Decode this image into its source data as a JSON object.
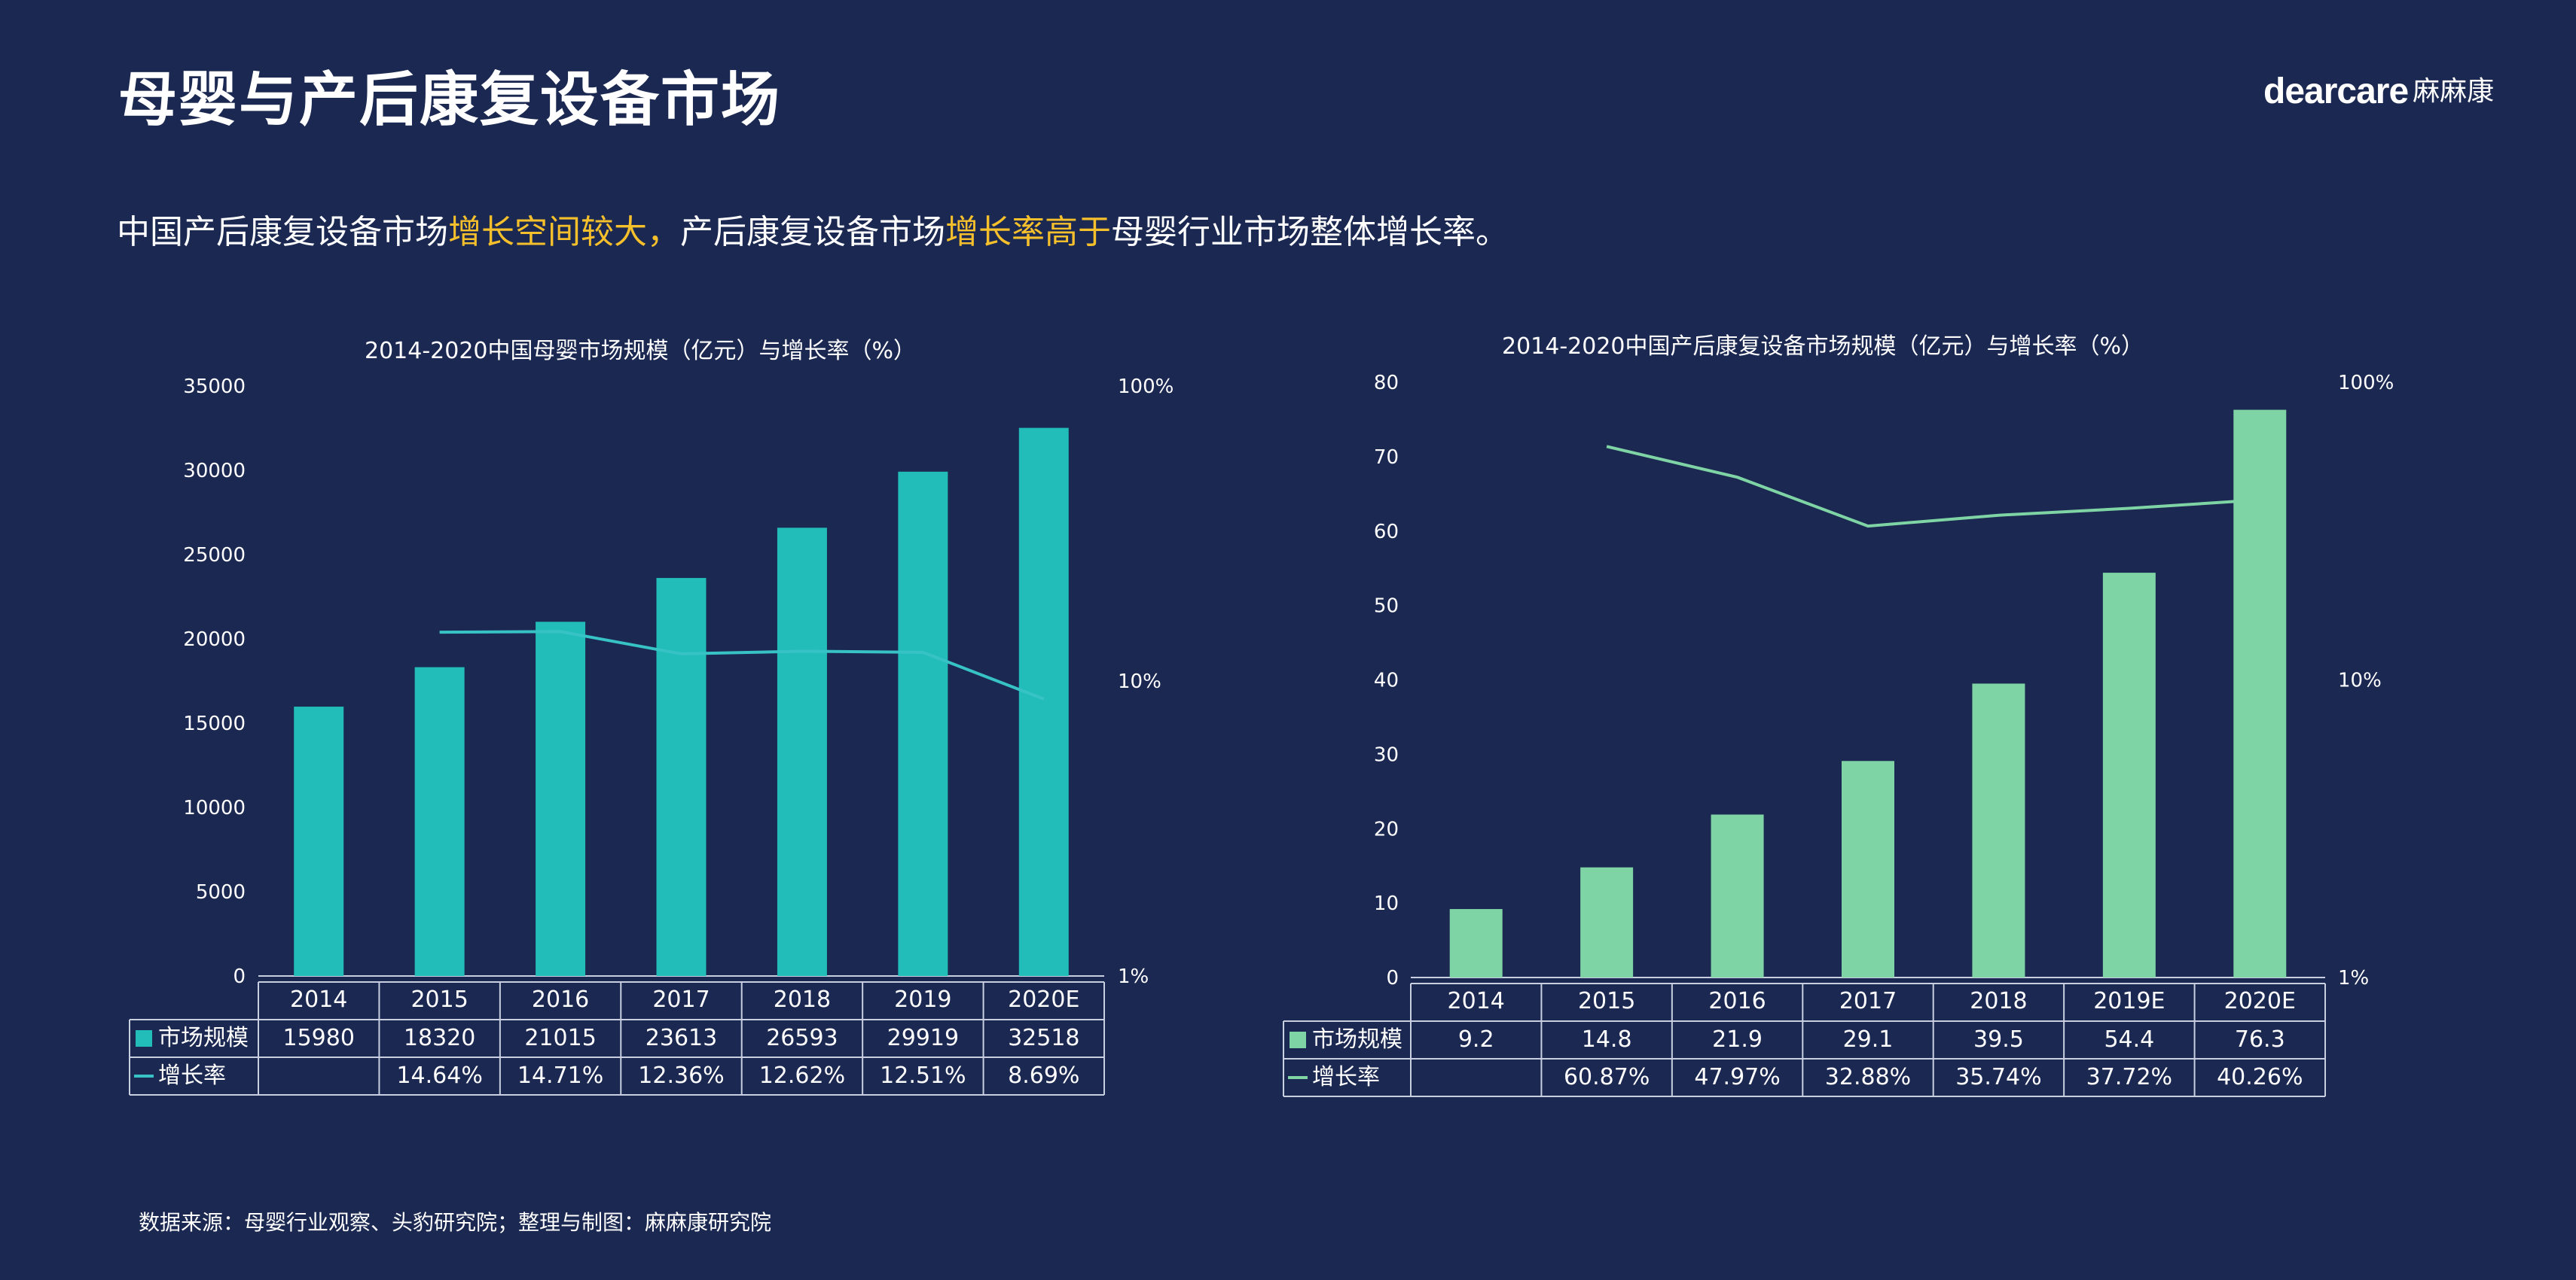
{
  "page": {
    "title": "母婴与产后康复设备市场",
    "logo_latin": "dearcare",
    "logo_cn": "麻麻康",
    "subtitle_parts": [
      "中国产后康复设备市场",
      "增长空间较大，",
      "产后康复设备市场",
      "增长率高于",
      "母婴行业市场整体增长率。"
    ],
    "source": "数据来源：母婴行业观察、头豹研究院；整理与制图：麻麻康研究院"
  },
  "colors": {
    "background": "#1b2851",
    "highlight": "#f6c02c",
    "chart1_bar": "#22bdb8",
    "chart1_line": "#37c3c5",
    "chart2_bar": "#7fd4a5",
    "chart2_line": "#7fd4a5",
    "table_border": "#c8cfe0"
  },
  "chart_data": [
    {
      "type": "bar",
      "title": "2014-2020中国母婴市场规模（亿元）与增长率（%）",
      "categories": [
        "2014",
        "2015",
        "2016",
        "2017",
        "2018",
        "2019",
        "2020E"
      ],
      "series": [
        {
          "name": "市场规模",
          "type": "bar",
          "axis": "left",
          "values": [
            15980,
            18320,
            21015,
            23613,
            26593,
            29919,
            32518
          ]
        },
        {
          "name": "增长率",
          "type": "line",
          "axis": "right-log",
          "values": [
            null,
            14.64,
            14.71,
            12.36,
            12.62,
            12.51,
            8.69
          ]
        }
      ],
      "rate_labels": [
        "",
        "14.64%",
        "14.71%",
        "12.36%",
        "12.62%",
        "12.51%",
        "8.69%"
      ],
      "ylim": [
        0,
        35000
      ],
      "yticks": [
        0,
        5000,
        10000,
        15000,
        20000,
        25000,
        30000,
        35000
      ],
      "y2_scale": "log",
      "y2lim": [
        1,
        100
      ],
      "y2ticks": [
        1,
        10,
        100
      ],
      "y2tick_labels": [
        "1%",
        "10%",
        "100%"
      ],
      "legend": "table"
    },
    {
      "type": "bar",
      "title": "2014-2020中国产后康复设备市场规模（亿元）与增长率（%）",
      "categories": [
        "2014",
        "2015",
        "2016",
        "2017",
        "2018",
        "2019E",
        "2020E"
      ],
      "series": [
        {
          "name": "市场规模",
          "type": "bar",
          "axis": "left",
          "values": [
            9.2,
            14.8,
            21.9,
            29.1,
            39.5,
            54.4,
            76.3
          ]
        },
        {
          "name": "增长率",
          "type": "line",
          "axis": "right-log",
          "values": [
            null,
            60.87,
            47.97,
            32.88,
            35.74,
            37.72,
            40.26
          ]
        }
      ],
      "rate_labels": [
        "",
        "60.87%",
        "47.97%",
        "32.88%",
        "35.74%",
        "37.72%",
        "40.26%"
      ],
      "ylim": [
        0,
        80
      ],
      "yticks": [
        0,
        10,
        20,
        30,
        40,
        50,
        60,
        70,
        80
      ],
      "y2_scale": "log",
      "y2lim": [
        1,
        100
      ],
      "y2ticks": [
        1,
        10,
        100
      ],
      "y2tick_labels": [
        "1%",
        "10%",
        "100%"
      ],
      "legend": "table"
    }
  ]
}
